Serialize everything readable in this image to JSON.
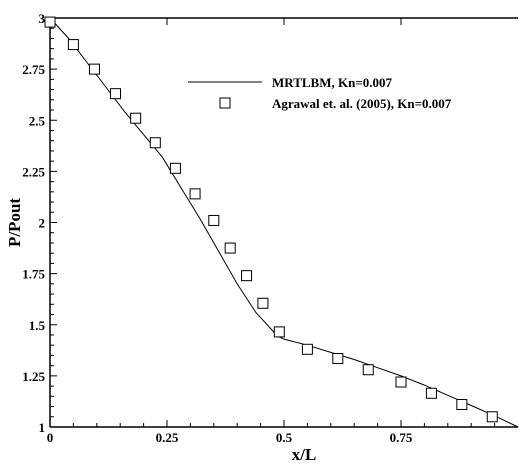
{
  "chart_data": {
    "type": "line",
    "xlabel": "x/L",
    "ylabel": "P/Pout",
    "xlim": [
      0,
      1
    ],
    "ylim": [
      1,
      3
    ],
    "xticks": [
      0,
      0.25,
      0.5,
      0.75
    ],
    "xtick_labels": [
      "0",
      "0.25",
      "0.5",
      "0.75"
    ],
    "yticks": [
      1,
      1.25,
      1.5,
      1.75,
      2,
      2.25,
      2.5,
      2.75,
      3
    ],
    "ytick_labels": [
      "1",
      "1.25",
      "1.5",
      "1.75",
      "2",
      "2.25",
      "2.5",
      "2.75",
      "3"
    ],
    "grid": false,
    "legend_position": "top-right",
    "series": [
      {
        "name": "MRTLBM, Kn=0.007",
        "style": "line",
        "color": "#000000",
        "x": [
          0.0,
          0.04,
          0.08,
          0.12,
          0.16,
          0.2,
          0.24,
          0.28,
          0.32,
          0.36,
          0.4,
          0.44,
          0.48,
          0.49,
          0.5,
          0.55,
          0.6,
          0.65,
          0.7,
          0.75,
          0.8,
          0.85,
          0.9,
          0.95,
          1.0
        ],
        "y": [
          3.0,
          2.9,
          2.78,
          2.66,
          2.54,
          2.43,
          2.32,
          2.17,
          2.02,
          1.86,
          1.7,
          1.56,
          1.46,
          1.44,
          1.43,
          1.4,
          1.365,
          1.33,
          1.29,
          1.25,
          1.205,
          1.155,
          1.105,
          1.055,
          1.0
        ]
      },
      {
        "name": "Agrawal et. al. (2005), Kn=0.007",
        "style": "marker",
        "marker": "square",
        "color": "#000000",
        "x": [
          0.0,
          0.05,
          0.095,
          0.14,
          0.183,
          0.225,
          0.268,
          0.31,
          0.35,
          0.385,
          0.42,
          0.455,
          0.49,
          0.55,
          0.615,
          0.68,
          0.75,
          0.815,
          0.88,
          0.945
        ],
        "y": [
          2.98,
          2.87,
          2.75,
          2.63,
          2.51,
          2.39,
          2.265,
          2.14,
          2.01,
          1.875,
          1.74,
          1.605,
          1.465,
          1.38,
          1.335,
          1.28,
          1.22,
          1.165,
          1.11,
          1.05
        ]
      }
    ]
  }
}
